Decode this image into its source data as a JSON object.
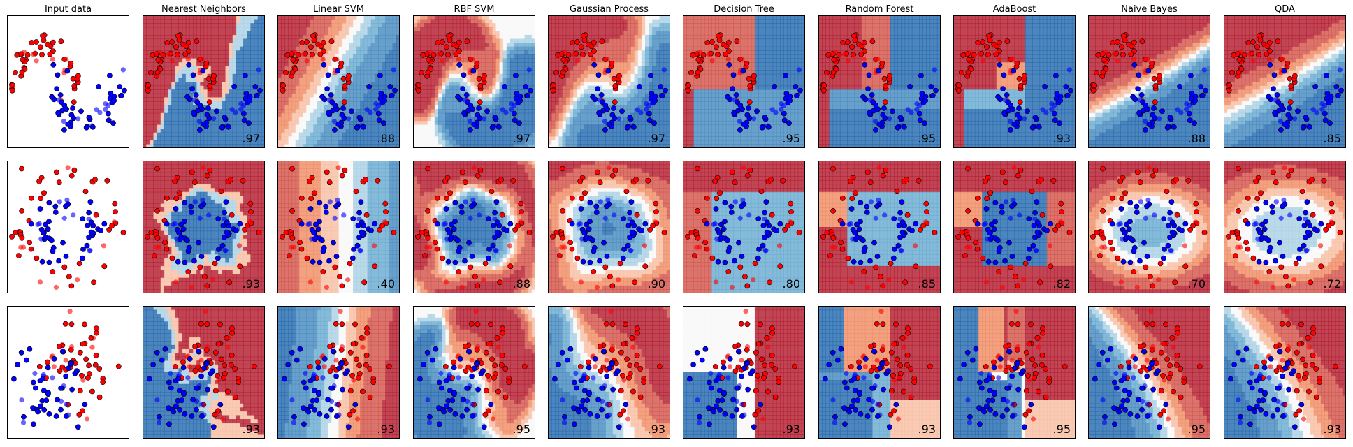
{
  "figure": {
    "classifiers": [
      "Input data",
      "Nearest Neighbors",
      "Linear SVM",
      "RBF SVM",
      "Gaussian Process",
      "Decision Tree",
      "Random Forest",
      "AdaBoost",
      "Naive Bayes",
      "QDA"
    ],
    "datasets": [
      "moons",
      "circles",
      "linearly separable"
    ],
    "colors": {
      "class0": "#ff0000",
      "class1": "#0000ff",
      "cmap_red": "#b2182b",
      "cmap_blue": "#2166ac",
      "cmap_mid": "#f7f7f7"
    }
  },
  "chart_data": {
    "type": "scatter",
    "layout": "grid 3 rows x 10 columns",
    "grid": false,
    "column_titles": [
      "Input data",
      "Nearest Neighbors",
      "Linear SVM",
      "RBF SVM",
      "Gaussian Process",
      "Decision Tree",
      "Random Forest",
      "AdaBoost",
      "Naive Bayes",
      "QDA"
    ],
    "scores": [
      [
        "",
        ".97",
        ".88",
        ".97",
        ".97",
        ".95",
        ".95",
        ".93",
        ".88",
        ".85"
      ],
      [
        "",
        ".93",
        ".40",
        ".88",
        ".90",
        ".80",
        ".85",
        ".82",
        ".70",
        ".72"
      ],
      [
        "",
        ".93",
        ".93",
        ".95",
        ".93",
        ".93",
        ".93",
        ".95",
        ".95",
        ".93"
      ]
    ],
    "legend": "none",
    "point_classes": [
      "red (class 0)",
      "blue (class 1)"
    ]
  }
}
